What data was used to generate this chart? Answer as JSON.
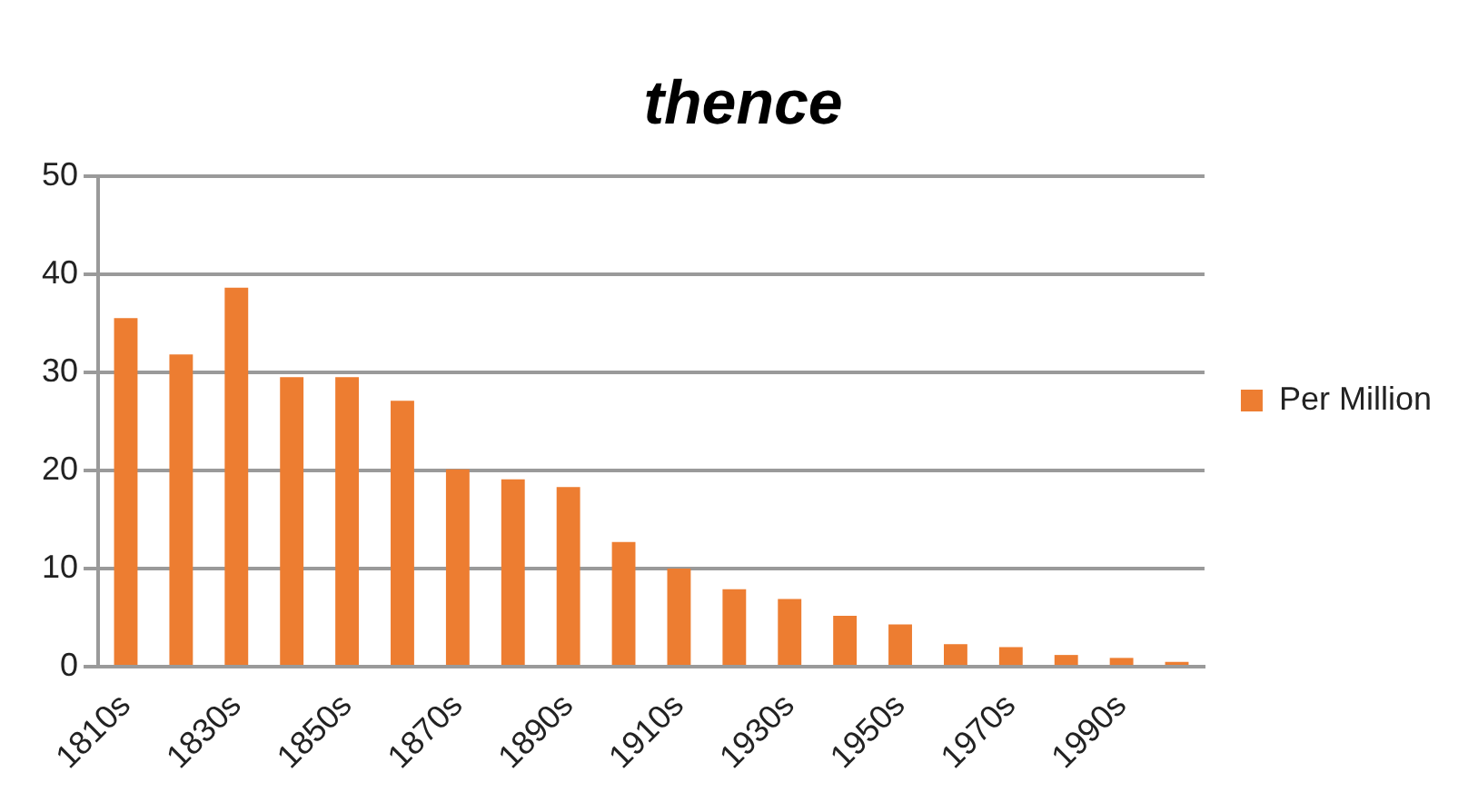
{
  "chart_data": {
    "type": "bar",
    "title": "thence",
    "categories": [
      "1810s",
      null,
      "1830s",
      null,
      "1850s",
      null,
      "1870s",
      null,
      "1890s",
      null,
      "1910s",
      null,
      "1930s",
      null,
      "1950s",
      null,
      "1970s",
      null,
      "1990s",
      null
    ],
    "series": [
      {
        "name": "Per Million",
        "color": "#ed7d31",
        "values": [
          35.5,
          31.8,
          38.6,
          29.5,
          29.5,
          27.1,
          20.1,
          19.1,
          18.3,
          12.7,
          10.0,
          7.9,
          6.9,
          5.2,
          4.3,
          2.3,
          2.0,
          1.2,
          0.9,
          0.5
        ]
      }
    ],
    "ylim": [
      0,
      50
    ],
    "yticks": [
      0,
      10,
      20,
      30,
      40,
      50
    ],
    "grid": "y",
    "legend": "right"
  }
}
